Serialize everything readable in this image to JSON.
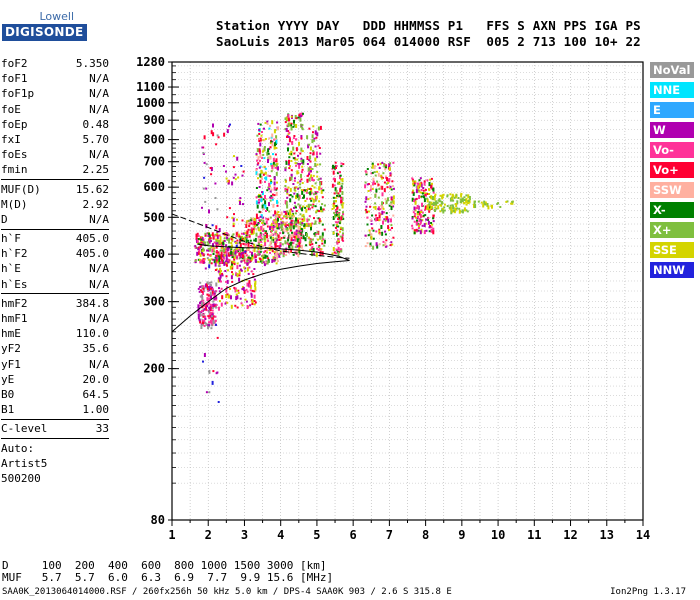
{
  "logo": {
    "top": "Lowell",
    "bottom": "DIGISONDE"
  },
  "header": {
    "line1": "Station YYYY DAY   DDD HHMMSS P1   FFS S AXN PPS IGA PS",
    "line2": "SaoLuis 2013 Mar05 064 014000 RSF  005 2 713 100 10+ 22"
  },
  "params": {
    "group1": [
      {
        "name": "foF2",
        "value": "5.350"
      },
      {
        "name": "foF1",
        "value": "N/A"
      },
      {
        "name": "foF1p",
        "value": "N/A"
      },
      {
        "name": "foE",
        "value": "N/A"
      },
      {
        "name": "foEp",
        "value": "0.48"
      },
      {
        "name": "fxI",
        "value": "5.70"
      },
      {
        "name": "foEs",
        "value": "N/A"
      },
      {
        "name": "fmin",
        "value": "2.25"
      }
    ],
    "group2": [
      {
        "name": "MUF(D)",
        "value": "15.62"
      },
      {
        "name": "M(D)",
        "value": "2.92"
      },
      {
        "name": "D",
        "value": "N/A"
      }
    ],
    "group3": [
      {
        "name": "h`F",
        "value": "405.0"
      },
      {
        "name": "h`F2",
        "value": "405.0"
      },
      {
        "name": "h`E",
        "value": "N/A"
      },
      {
        "name": "h`Es",
        "value": "N/A"
      }
    ],
    "group4": [
      {
        "name": "hmF2",
        "value": "384.8"
      },
      {
        "name": "hmF1",
        "value": "N/A"
      },
      {
        "name": "hmE",
        "value": "110.0"
      },
      {
        "name": "yF2",
        "value": "35.6"
      },
      {
        "name": "yF1",
        "value": "N/A"
      },
      {
        "name": "yE",
        "value": "20.0"
      },
      {
        "name": "B0",
        "value": "64.5"
      },
      {
        "name": "B1",
        "value": "1.00"
      }
    ],
    "clevel": {
      "name": "C-level",
      "value": "33"
    },
    "scaling": [
      "Auto:",
      "Artist5",
      "500200"
    ]
  },
  "footer": {
    "d_line": "D     100  200  400  600  800 1000 1500 3000 [km]",
    "muf_line": "MUF   5.7  5.7  6.0  6.3  6.9  7.7  9.9 15.6 [MHz]",
    "info": "SAA0K_2013064014000.RSF / 260fx256h 50 kHz 5.0 km / DPS-4 SAA0K 903 / 2.6 S 315.8 E",
    "version": "Ion2Png 1.3.17"
  },
  "legend": [
    {
      "label": "NoVal",
      "color": "#999999"
    },
    {
      "label": "NNE",
      "color": "#00e5ff"
    },
    {
      "label": "E",
      "color": "#2fa8ff"
    },
    {
      "label": "W",
      "color": "#b000b0"
    },
    {
      "label": "Vo-",
      "color": "#ff3399"
    },
    {
      "label": "Vo+",
      "color": "#ff0033"
    },
    {
      "label": "SSW",
      "color": "#ffb0a0"
    },
    {
      "label": "X-",
      "color": "#008000"
    },
    {
      "label": "X+",
      "color": "#7fbf3f"
    },
    {
      "label": "SSE",
      "color": "#d4d400"
    },
    {
      "label": "NNW",
      "color": "#2222dd"
    }
  ],
  "chart_data": {
    "type": "scatter",
    "title": "",
    "xlabel": "",
    "ylabel": "",
    "xlim": [
      1,
      14
    ],
    "ylim": [
      80,
      1280
    ],
    "y_scale": "log",
    "x_ticks": [
      1,
      2,
      3,
      4,
      5,
      6,
      7,
      8,
      9,
      10,
      11,
      12,
      13,
      14
    ],
    "y_ticks": [
      80,
      200,
      300,
      400,
      500,
      600,
      700,
      800,
      900,
      1000,
      1100,
      1280
    ],
    "grid": true,
    "y_minor_ticks": [
      100,
      110,
      120,
      130,
      140,
      150,
      160,
      170,
      180,
      190,
      200,
      210,
      220,
      230,
      240,
      250,
      260,
      270,
      280,
      290,
      300,
      320,
      340,
      360,
      380,
      400,
      420,
      440,
      460,
      480,
      500,
      520,
      540,
      560,
      580,
      600,
      620,
      640,
      660,
      680,
      700,
      720,
      740,
      760,
      780,
      800,
      850,
      900,
      950,
      1000,
      1050,
      1100,
      1150,
      1200,
      1250
    ],
    "trace_clusters": [
      {
        "x": [
          1.7,
          2.2
        ],
        "y": [
          260,
          340
        ],
        "n": 180,
        "mix": [
          5,
          3,
          4,
          0
        ]
      },
      {
        "x": [
          1.6,
          3.0
        ],
        "y": [
          380,
          460
        ],
        "n": 320,
        "mix": [
          5,
          4,
          7,
          8,
          9,
          3
        ]
      },
      {
        "x": [
          2.2,
          3.3
        ],
        "y": [
          290,
          400
        ],
        "n": 140,
        "mix": [
          5,
          3,
          4,
          9
        ]
      },
      {
        "x": [
          3.0,
          3.9
        ],
        "y": [
          380,
          500
        ],
        "n": 260,
        "mix": [
          5,
          4,
          7,
          8,
          9,
          3,
          6
        ]
      },
      {
        "x": [
          3.3,
          3.9
        ],
        "y": [
          500,
          900
        ],
        "n": 200,
        "mix": [
          9,
          4,
          3,
          5,
          7,
          8,
          6,
          1
        ]
      },
      {
        "x": [
          3.8,
          4.6
        ],
        "y": [
          400,
          520
        ],
        "n": 260,
        "mix": [
          9,
          7,
          8,
          4,
          5,
          3,
          6
        ]
      },
      {
        "x": [
          4.1,
          4.6
        ],
        "y": [
          520,
          950
        ],
        "n": 170,
        "mix": [
          9,
          8,
          3,
          4,
          5,
          7
        ]
      },
      {
        "x": [
          4.6,
          5.2
        ],
        "y": [
          400,
          600
        ],
        "n": 130,
        "mix": [
          9,
          8,
          7,
          4,
          5
        ]
      },
      {
        "x": [
          4.7,
          5.1
        ],
        "y": [
          600,
          880
        ],
        "n": 70,
        "mix": [
          9,
          8,
          4,
          3,
          5
        ]
      },
      {
        "x": [
          5.4,
          5.7
        ],
        "y": [
          400,
          700
        ],
        "n": 140,
        "mix": [
          9,
          8,
          7,
          4,
          5
        ]
      },
      {
        "x": [
          6.3,
          7.1
        ],
        "y": [
          420,
          700
        ],
        "n": 200,
        "mix": [
          9,
          5,
          3,
          4,
          8,
          7,
          6
        ]
      },
      {
        "x": [
          7.6,
          8.2
        ],
        "y": [
          460,
          640
        ],
        "n": 160,
        "mix": [
          9,
          5,
          4,
          3,
          7
        ]
      },
      {
        "x": [
          8.0,
          9.2
        ],
        "y": [
          520,
          580
        ],
        "n": 120,
        "mix": [
          9,
          8
        ]
      },
      {
        "x": [
          9.3,
          10.4
        ],
        "y": [
          535,
          555
        ],
        "n": 25,
        "mix": [
          9,
          8
        ]
      },
      {
        "x": [
          1.8,
          2.3
        ],
        "y": [
          160,
          1000
        ],
        "n": 60,
        "mix": [
          3,
          5,
          10,
          0
        ]
      },
      {
        "x": [
          2.4,
          3.0
        ],
        "y": [
          280,
          900
        ],
        "n": 50,
        "mix": [
          5,
          3,
          10,
          9
        ]
      }
    ],
    "profile_curves": {
      "solid": [
        [
          1.0,
          250
        ],
        [
          1.5,
          275
        ],
        [
          2.0,
          300
        ],
        [
          2.5,
          325
        ],
        [
          3.0,
          342
        ],
        [
          3.5,
          355
        ],
        [
          4.0,
          365
        ],
        [
          4.5,
          372
        ],
        [
          5.0,
          378
        ],
        [
          5.5,
          382
        ],
        [
          5.9,
          385
        ],
        [
          5.6,
          395
        ],
        [
          5.0,
          405
        ],
        [
          4.5,
          410
        ],
        [
          4.0,
          413
        ],
        [
          3.5,
          415
        ],
        [
          3.0,
          416
        ],
        [
          2.5,
          418
        ],
        [
          2.0,
          421
        ],
        [
          1.7,
          425
        ]
      ],
      "dashed": [
        [
          1.0,
          510
        ],
        [
          1.5,
          490
        ],
        [
          2.0,
          470
        ],
        [
          2.5,
          450
        ],
        [
          3.0,
          432
        ],
        [
          3.5,
          418
        ],
        [
          4.0,
          408
        ],
        [
          4.5,
          402
        ],
        [
          5.0,
          397
        ],
        [
          5.5,
          393
        ],
        [
          5.9,
          390
        ]
      ]
    }
  }
}
